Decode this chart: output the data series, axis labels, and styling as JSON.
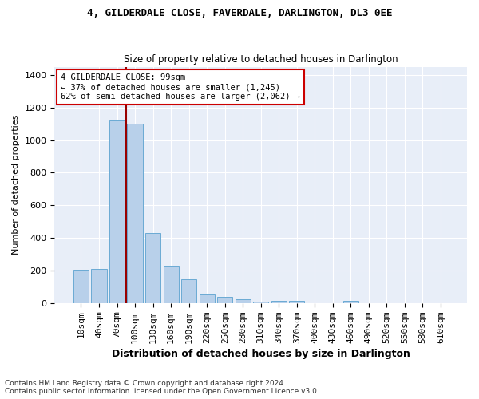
{
  "title": "4, GILDERDALE CLOSE, FAVERDALE, DARLINGTON, DL3 0EE",
  "subtitle": "Size of property relative to detached houses in Darlington",
  "xlabel": "Distribution of detached houses by size in Darlington",
  "ylabel": "Number of detached properties",
  "footnote1": "Contains HM Land Registry data © Crown copyright and database right 2024.",
  "footnote2": "Contains public sector information licensed under the Open Government Licence v3.0.",
  "bar_labels": [
    "10sqm",
    "40sqm",
    "70sqm",
    "100sqm",
    "130sqm",
    "160sqm",
    "190sqm",
    "220sqm",
    "250sqm",
    "280sqm",
    "310sqm",
    "340sqm",
    "370sqm",
    "400sqm",
    "430sqm",
    "460sqm",
    "490sqm",
    "520sqm",
    "550sqm",
    "580sqm",
    "610sqm"
  ],
  "bar_values": [
    205,
    210,
    1120,
    1100,
    430,
    230,
    145,
    55,
    40,
    25,
    10,
    15,
    15,
    0,
    0,
    15,
    0,
    0,
    0,
    0,
    0
  ],
  "bar_color": "#b8d0ea",
  "bar_edge_color": "#6aaad4",
  "bg_color": "#e8eef8",
  "grid_color": "#ffffff",
  "vline_color": "#990000",
  "annotation_text": "4 GILDERDALE CLOSE: 99sqm\n← 37% of detached houses are smaller (1,245)\n62% of semi-detached houses are larger (2,062) →",
  "annotation_box_color": "#cc0000",
  "ylim": [
    0,
    1450
  ],
  "yticks": [
    0,
    200,
    400,
    600,
    800,
    1000,
    1200,
    1400
  ],
  "title_fontsize": 9,
  "subtitle_fontsize": 8.5,
  "ylabel_fontsize": 8,
  "xlabel_fontsize": 9,
  "tick_fontsize": 8,
  "footnote_fontsize": 6.5
}
